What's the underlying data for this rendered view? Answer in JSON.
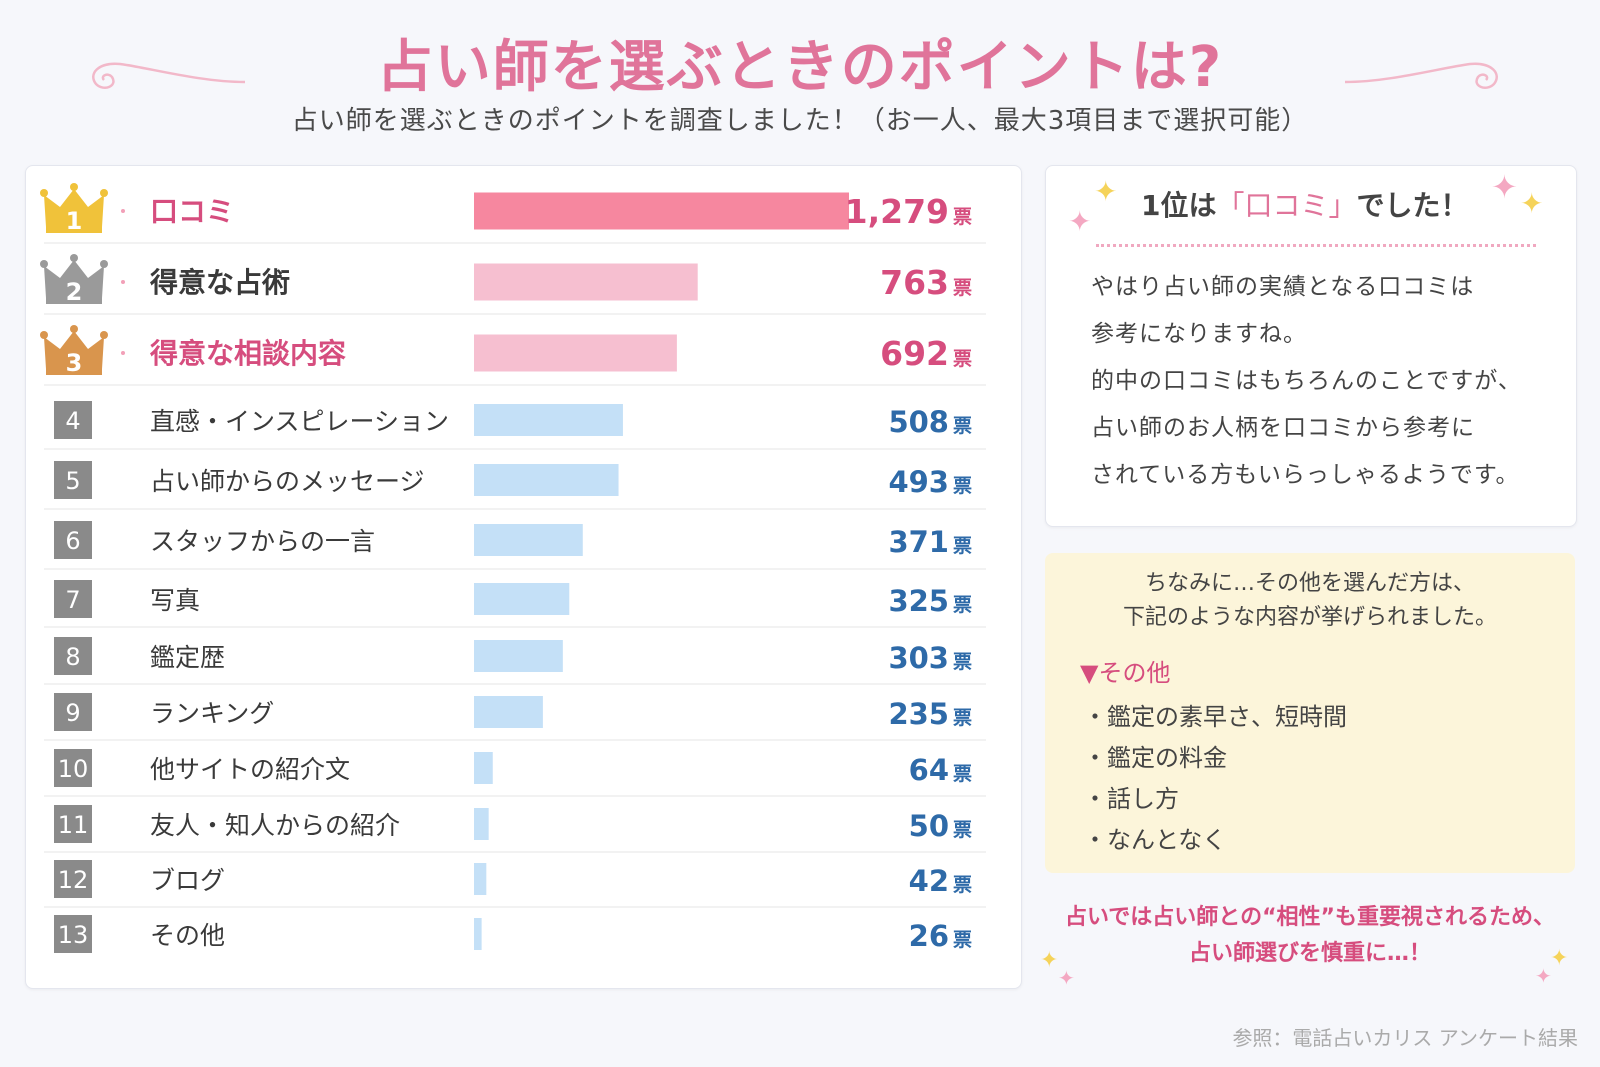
{
  "header": {
    "title": "占い師を選ぶときのポイントは?",
    "subtitle": "占い師を選ぶときのポイントを調査しました！（お一人、最大3項目まで選択可能）"
  },
  "chart_data": {
    "type": "bar",
    "orientation": "horizontal",
    "unit": "票",
    "ranks": [
      "1",
      "2",
      "3",
      "4",
      "5",
      "6",
      "7",
      "8",
      "9",
      "10",
      "11",
      "12",
      "13"
    ],
    "categories": [
      "口コミ",
      "得意な占術",
      "得意な相談内容",
      "直感・インスピレーション",
      "占い師からのメッセージ",
      "スタッフからの一言",
      "写真",
      "鑑定歴",
      "ランキング",
      "他サイトの紹介文",
      "友人・知人からの紹介",
      "ブログ",
      "その他"
    ],
    "values": [
      1279,
      763,
      692,
      508,
      493,
      371,
      325,
      303,
      235,
      64,
      50,
      42,
      26
    ],
    "value_labels": [
      "1,279",
      "763",
      "692",
      "508",
      "493",
      "371",
      "325",
      "303",
      "235",
      "64",
      "50",
      "42",
      "26"
    ]
  },
  "colors": {
    "bar_top1": "#f6879f",
    "bar_top23": "#f6bfd0",
    "bar_rest": "#c4e0f7",
    "label_pink": "#d64d7e",
    "value_blue": "#2e6aa8",
    "rank_box": "#8a8a8a",
    "gold": "#f0c23a",
    "silver": "#9a9a9a",
    "bronze": "#d9954d"
  },
  "summary": {
    "heading_prefix": "1位は",
    "heading_highlight": "「口コミ」",
    "heading_suffix": "でした！",
    "lines": [
      "やはり占い師の実績となる口コミは",
      "参考になりますね。",
      "的中の口コミはもちろんのことですが、",
      "占い師のお人柄を口コミから参考に",
      "されている方もいらっしゃるようです。"
    ]
  },
  "other_box": {
    "intro_lines": [
      "ちなみに…その他を選んだ方は、",
      "下記のような内容が挙げられました。"
    ],
    "heading": "▼その他",
    "items": [
      "・鑑定の素早さ、短時間",
      "・鑑定の料金",
      "・話し方",
      "・なんとなく"
    ]
  },
  "closing_lines": [
    "占いでは占い師との“相性”も重要視されるため、",
    "占い師選びを慎重に…！"
  ],
  "source": "参照：電話占いカリス アンケート結果"
}
